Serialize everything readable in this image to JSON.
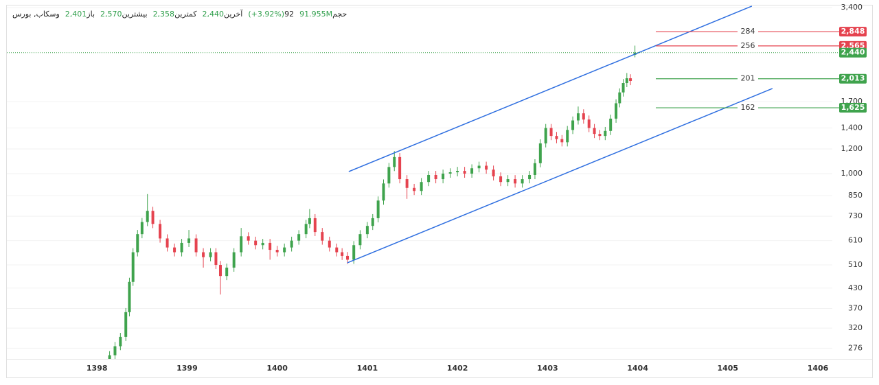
{
  "header": {
    "symbol": "وسکاب, بورس",
    "fields": [
      {
        "label": "باز",
        "value": "2,401"
      },
      {
        "label": "بیشترین",
        "value": "2,570"
      },
      {
        "label": "کمترین",
        "value": "2,358"
      },
      {
        "label": "آخرین",
        "value": "2,440"
      },
      {
        "label": "92",
        "value": "(+3.92%)"
      },
      {
        "label": "حجم",
        "value": "91.955M"
      }
    ]
  },
  "chart_data": {
    "type": "candlestick",
    "log_scale": true,
    "grid": true,
    "up_color": "#3fa34d",
    "down_color": "#e5434f",
    "xlim": [
      1397.0,
      1406.16
    ],
    "xticks": [
      1398,
      1399,
      1400,
      1401,
      1402,
      1403,
      1404,
      1405,
      1406
    ],
    "ylim": [
      255,
      3455
    ],
    "yticks": [
      {
        "value": 3400,
        "label": "3,400"
      },
      {
        "value": 1700,
        "label": "1,700"
      },
      {
        "value": 1400,
        "label": "1,400"
      },
      {
        "value": 1200,
        "label": "1,200"
      },
      {
        "value": 1000,
        "label": "1,000"
      },
      850,
      730,
      610,
      510,
      430,
      370,
      320,
      276
    ],
    "candles": {
      "x": [
        1398.14,
        1398.2,
        1398.26,
        1398.32,
        1398.36,
        1398.4,
        1398.45,
        1398.5,
        1398.56,
        1398.62,
        1398.7,
        1398.78,
        1398.86,
        1398.94,
        1399.02,
        1399.1,
        1399.18,
        1399.26,
        1399.32,
        1399.37,
        1399.44,
        1399.52,
        1399.6,
        1399.68,
        1399.76,
        1399.84,
        1399.92,
        1400.0,
        1400.08,
        1400.16,
        1400.24,
        1400.32,
        1400.36,
        1400.42,
        1400.5,
        1400.58,
        1400.66,
        1400.72,
        1400.78,
        1400.85,
        1400.92,
        1401.0,
        1401.06,
        1401.12,
        1401.18,
        1401.24,
        1401.3,
        1401.36,
        1401.44,
        1401.52,
        1401.6,
        1401.68,
        1401.76,
        1401.84,
        1401.92,
        1402.0,
        1402.08,
        1402.16,
        1402.24,
        1402.32,
        1402.4,
        1402.48,
        1402.56,
        1402.64,
        1402.72,
        1402.8,
        1402.86,
        1402.92,
        1402.98,
        1403.04,
        1403.1,
        1403.16,
        1403.22,
        1403.28,
        1403.34,
        1403.4,
        1403.46,
        1403.52,
        1403.58,
        1403.64,
        1403.7,
        1403.76,
        1403.8,
        1403.84,
        1403.88,
        1403.92,
        1403.97
      ],
      "open": [
        255,
        262,
        280,
        300,
        360,
        450,
        560,
        640,
        700,
        760,
        690,
        620,
        580,
        560,
        600,
        620,
        560,
        540,
        560,
        510,
        470,
        500,
        560,
        630,
        610,
        590,
        600,
        570,
        560,
        580,
        610,
        640,
        690,
        720,
        650,
        610,
        580,
        560,
        545,
        530,
        590,
        640,
        680,
        720,
        820,
        930,
        1050,
        1130,
        960,
        900,
        880,
        940,
        990,
        960,
        1000,
        1010,
        1020,
        1000,
        1040,
        1060,
        1030,
        980,
        940,
        960,
        930,
        960,
        990,
        1080,
        1250,
        1400,
        1320,
        1290,
        1260,
        1380,
        1480,
        1560,
        1490,
        1400,
        1340,
        1320,
        1370,
        1500,
        1680,
        1820,
        1950,
        2020,
        2401
      ],
      "high": [
        270,
        289,
        309,
        371,
        464,
        577,
        660,
        721,
        860,
        783,
        711,
        639,
        597,
        618,
        660,
        639,
        577,
        577,
        577,
        525,
        515,
        577,
        670,
        649,
        628,
        618,
        618,
        587,
        597,
        628,
        659,
        711,
        770,
        742,
        670,
        628,
        597,
        577,
        561,
        608,
        659,
        700,
        742,
        845,
        958,
        1082,
        1180,
        1164,
        989,
        927,
        968,
        1020,
        1020,
        1030,
        1040,
        1051,
        1051,
        1071,
        1092,
        1092,
        1061,
        1009,
        989,
        989,
        989,
        1020,
        1112,
        1288,
        1442,
        1442,
        1360,
        1329,
        1421,
        1524,
        1640,
        1607,
        1535,
        1442,
        1380,
        1411,
        1545,
        1730,
        1875,
        2009,
        2100,
        2081,
        2570
      ],
      "low": [
        248,
        254,
        272,
        291,
        349,
        437,
        543,
        621,
        679,
        669,
        601,
        563,
        543,
        543,
        582,
        543,
        500,
        524,
        495,
        410,
        456,
        485,
        543,
        592,
        572,
        572,
        530,
        543,
        543,
        563,
        592,
        621,
        669,
        631,
        592,
        563,
        543,
        529,
        514,
        514,
        572,
        621,
        660,
        698,
        795,
        902,
        1019,
        931,
        830,
        854,
        854,
        912,
        931,
        931,
        970,
        980,
        970,
        970,
        1009,
        999,
        951,
        912,
        912,
        902,
        902,
        931,
        960,
        1048,
        1213,
        1280,
        1251,
        1222,
        1222,
        1339,
        1436,
        1445,
        1358,
        1300,
        1280,
        1280,
        1329,
        1455,
        1630,
        1765,
        1892,
        1920,
        2358
      ],
      "close": [
        262,
        280,
        300,
        360,
        450,
        560,
        640,
        700,
        760,
        690,
        620,
        580,
        560,
        600,
        620,
        560,
        540,
        560,
        510,
        470,
        500,
        560,
        630,
        610,
        590,
        600,
        570,
        560,
        580,
        610,
        640,
        690,
        720,
        650,
        610,
        580,
        560,
        545,
        530,
        590,
        640,
        680,
        720,
        820,
        930,
        1050,
        1130,
        960,
        900,
        880,
        940,
        990,
        960,
        1000,
        1010,
        1020,
        1000,
        1040,
        1060,
        1030,
        980,
        940,
        960,
        930,
        960,
        990,
        1080,
        1250,
        1400,
        1320,
        1290,
        1260,
        1380,
        1480,
        1560,
        1490,
        1400,
        1340,
        1320,
        1370,
        1500,
        1680,
        1820,
        1950,
        2020,
        1980,
        2440
      ]
    },
    "trend_lines": [
      {
        "color": "#2f6fe0",
        "x": [
          1400.794,
          1405.267
        ],
        "y": [
          1015,
          3438
        ]
      },
      {
        "color": "#2f6fe0",
        "x": [
          1400.779,
          1405.496
        ],
        "y": [
          518,
          1873
        ]
      }
    ],
    "levels": [
      {
        "name": 284,
        "color": "#e5434f",
        "price": {
          "value": 2848,
          "label": "2,848"
        }
      },
      {
        "name": 256,
        "color": "#e5434f",
        "price": {
          "value": 2565,
          "label": "2,565"
        }
      },
      {
        "name": 201,
        "color": "#3fa34d",
        "price": {
          "value": 2013,
          "label": "2,013"
        }
      },
      {
        "name": 162,
        "color": "#3fa34d",
        "price": {
          "value": 1625,
          "label": "1,625"
        }
      }
    ],
    "last_price": {
      "color": "#3fa34d",
      "price": {
        "value": 2440,
        "label": "2,440"
      }
    }
  }
}
